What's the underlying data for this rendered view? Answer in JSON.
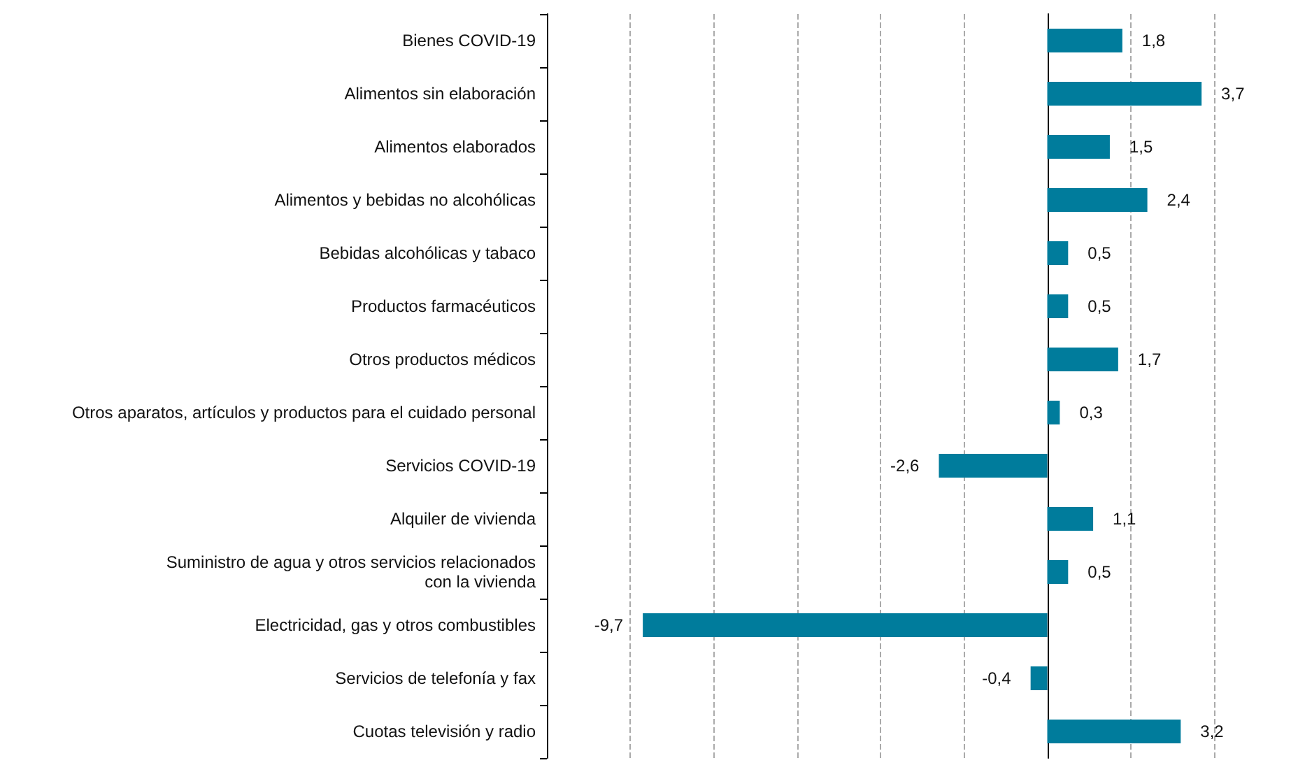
{
  "chart_data": {
    "type": "bar",
    "orientation": "horizontal",
    "categories": [
      "Bienes COVID-19",
      "Alimentos sin elaboración",
      "Alimentos elaborados",
      "Alimentos y bebidas no alcohólicas",
      "Bebidas alcohólicas y tabaco",
      "Productos farmacéuticos",
      "Otros productos médicos",
      "Otros aparatos, artículos y productos para el cuidado personal",
      "Servicios COVID-19",
      "Alquiler de vivienda",
      "Suministro de agua y otros servicios relacionados\ncon la vivienda",
      "Electricidad, gas y otros combustibles",
      "Servicios de telefonía y fax",
      "Cuotas televisión y radio"
    ],
    "values": [
      1.8,
      3.7,
      1.5,
      2.4,
      0.5,
      0.5,
      1.7,
      0.3,
      -2.6,
      1.1,
      0.5,
      -9.7,
      -0.4,
      3.2
    ],
    "value_labels": [
      "1,8",
      "3,7",
      "1,5",
      "2,4",
      "0,5",
      "0,5",
      "1,7",
      "0,3",
      "-2,6",
      "1,1",
      "0,5",
      "-9,7",
      "-0,4",
      "3,2"
    ],
    "color": "#007c9c",
    "xlim": [
      -12,
      4
    ],
    "xticks": [
      {
        "value": -10,
        "label": null
      },
      {
        "value": -8,
        "label": null
      },
      {
        "value": -6,
        "label": null
      },
      {
        "value": -4,
        "label": null
      },
      {
        "value": -2,
        "label": null
      },
      {
        "value": 0,
        "label": null
      },
      {
        "value": 2,
        "label": null
      },
      {
        "value": 4,
        "label": null
      }
    ],
    "grid": "x",
    "tick_labels": "y"
  }
}
